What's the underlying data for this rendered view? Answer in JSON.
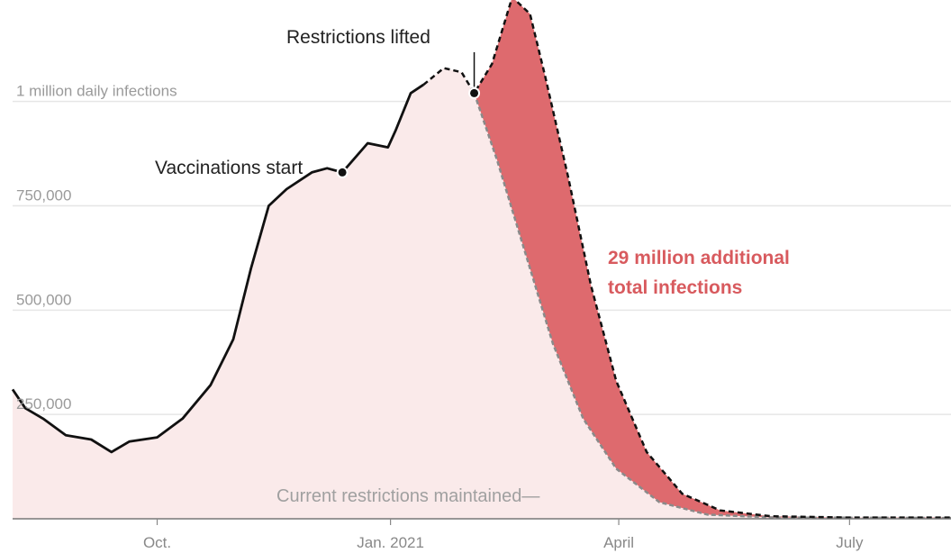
{
  "chart_data": {
    "type": "area",
    "y_axis": {
      "ylim": [
        0,
        1200000
      ],
      "ticks": [
        {
          "value": 250000,
          "label": "250,000"
        },
        {
          "value": 500000,
          "label": "500,000"
        },
        {
          "value": 750000,
          "label": "750,000"
        },
        {
          "value": 1000000,
          "label": "1 million daily infections"
        }
      ]
    },
    "x_axis": {
      "xlim": [
        "2020-08-05",
        "2021-08-10"
      ],
      "ticks": [
        {
          "date": "2020-10-01",
          "label": "Oct."
        },
        {
          "date": "2021-01-01",
          "label": "Jan. 2021"
        },
        {
          "date": "2021-04-01",
          "label": "April"
        },
        {
          "date": "2021-07-01",
          "label": "July"
        }
      ]
    },
    "series": [
      {
        "style": "solid-black",
        "points": [
          [
            "2020-08-05",
            310000
          ],
          [
            "2020-08-10",
            265000
          ],
          [
            "2020-08-17",
            240000
          ],
          [
            "2020-08-26",
            200000
          ],
          [
            "2020-09-05",
            190000
          ],
          [
            "2020-09-13",
            160000
          ],
          [
            "2020-09-20",
            185000
          ],
          [
            "2020-10-01",
            195000
          ],
          [
            "2020-10-11",
            240000
          ],
          [
            "2020-10-22",
            320000
          ],
          [
            "2020-10-31",
            430000
          ],
          [
            "2020-11-07",
            600000
          ],
          [
            "2020-11-14",
            750000
          ],
          [
            "2020-11-21",
            790000
          ],
          [
            "2020-12-01",
            830000
          ],
          [
            "2020-12-07",
            840000
          ],
          [
            "2020-12-13",
            830000
          ],
          [
            "2020-12-23",
            900000
          ],
          [
            "2020-12-31",
            890000
          ],
          [
            "2021-01-03",
            930000
          ],
          [
            "2021-01-09",
            1020000
          ],
          [
            "2021-01-14",
            1040000
          ]
        ]
      },
      {
        "style": "dashed-black",
        "points": [
          [
            "2021-01-14",
            1040000
          ],
          [
            "2021-01-22",
            1080000
          ],
          [
            "2021-01-29",
            1070000
          ],
          [
            "2021-02-03",
            1020000
          ],
          [
            "2021-02-10",
            1090000
          ],
          [
            "2021-02-18",
            1250000
          ],
          [
            "2021-02-25",
            1210000
          ],
          [
            "2021-03-03",
            1060000
          ],
          [
            "2021-03-12",
            820000
          ],
          [
            "2021-03-21",
            560000
          ],
          [
            "2021-03-31",
            330000
          ],
          [
            "2021-04-12",
            160000
          ],
          [
            "2021-04-26",
            60000
          ],
          [
            "2021-05-11",
            20000
          ],
          [
            "2021-05-31",
            6000
          ],
          [
            "2021-06-30",
            3000
          ],
          [
            "2021-08-10",
            3000
          ]
        ]
      },
      {
        "style": "dashed-gray",
        "points": [
          [
            "2021-02-03",
            1020000
          ],
          [
            "2021-02-12",
            860000
          ],
          [
            "2021-02-23",
            640000
          ],
          [
            "2021-03-06",
            420000
          ],
          [
            "2021-03-18",
            240000
          ],
          [
            "2021-03-31",
            120000
          ],
          [
            "2021-04-17",
            40000
          ],
          [
            "2021-05-06",
            10000
          ],
          [
            "2021-06-01",
            3000
          ],
          [
            "2021-08-10",
            2000
          ]
        ]
      }
    ],
    "markers": [
      {
        "date": "2020-12-13",
        "value": 830000
      },
      {
        "date": "2021-02-03",
        "value": 1020000
      }
    ],
    "annotations": {
      "vaccinations": "Vaccinations start",
      "restrictions_lifted": "Restrictions lifted",
      "current_restrictions": "Current restrictions maintained—",
      "additional_line1": "29 million additional",
      "additional_line2": "total infections"
    },
    "colors": {
      "base_fill": "#faeaea",
      "additional_fill": "#de6a6e",
      "solid_line": "#111111",
      "gray_line": "#8a8a8a",
      "grid": "#e6e6e6",
      "highlight_text": "#d85a5e"
    },
    "grid": true
  }
}
